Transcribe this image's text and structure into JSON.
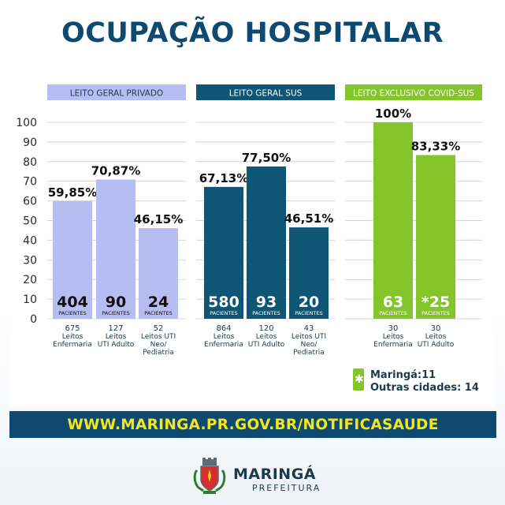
{
  "title": "OCUPAÇÃO HOSPITALAR",
  "banner_text": "WWW.MARINGA.PR.GOV.BR/NOTIFICASAUDE",
  "brand": {
    "name": "MARINGÁ",
    "subtitle": "PREFEITURA"
  },
  "colors": {
    "privado": "#b5bdf3",
    "sus": "#0e5576",
    "covid": "#83c52a",
    "title": "#0e4a6f",
    "banner_text": "#f7e61a"
  },
  "legend": {
    "marker": "✱",
    "line1": "Maringá:11",
    "line2": "Outras cidades: 14"
  },
  "chart_data": {
    "type": "bar",
    "ylim": [
      0,
      100
    ],
    "yticks": [
      "0",
      "10",
      "20",
      "30",
      "40",
      "50",
      "60",
      "70",
      "80",
      "90",
      "100"
    ],
    "grid": true,
    "groups": [
      {
        "name": "LEITO GERAL PRIVADO",
        "color": "#b5bdf3",
        "bars": [
          {
            "value": 59.85,
            "label": "59,85%",
            "patients": "404",
            "patients_label": "PACIENTES",
            "beds": "675",
            "category": [
              "Leitos",
              "Enfermaria"
            ]
          },
          {
            "value": 70.87,
            "label": "70,87%",
            "patients": "90",
            "patients_label": "PACIENTES",
            "beds": "127",
            "category": [
              "Leitos",
              "UTI Adulto"
            ]
          },
          {
            "value": 46.15,
            "label": "46,15%",
            "patients": "24",
            "patients_label": "PACIENTES",
            "beds": "52",
            "category": [
              "Leitos UTI",
              "Neo/",
              "Pediatria"
            ]
          }
        ]
      },
      {
        "name": "LEITO GERAL SUS",
        "color": "#0e5576",
        "bars": [
          {
            "value": 67.13,
            "label": "67,13%",
            "patients": "580",
            "patients_label": "PACIENTES",
            "beds": "864",
            "category": [
              "Leitos",
              "Enfermaria"
            ]
          },
          {
            "value": 77.5,
            "label": "77,50%",
            "patients": "93",
            "patients_label": "PACIENTES",
            "beds": "120",
            "category": [
              "Leitos",
              "UTI Adulto"
            ]
          },
          {
            "value": 46.51,
            "label": "46,51%",
            "patients": "20",
            "patients_label": "PACIENTES",
            "beds": "43",
            "category": [
              "Leitos UTI",
              "Neo/",
              "Pediatria"
            ]
          }
        ]
      },
      {
        "name": "LEITO EXCLUSIVO COVID-SUS",
        "color": "#83c52a",
        "bars": [
          {
            "value": 100,
            "label": "100%",
            "patients": "63",
            "patients_label": "PACIENTES",
            "beds": "30",
            "category": [
              "Leitos",
              "Enfermaria"
            ]
          },
          {
            "value": 83.33,
            "label": "83,33%",
            "patients": "*25",
            "patients_label": "PACIENTES",
            "beds": "30",
            "category": [
              "Leitos",
              "UTI Adulto"
            ]
          }
        ]
      }
    ]
  }
}
